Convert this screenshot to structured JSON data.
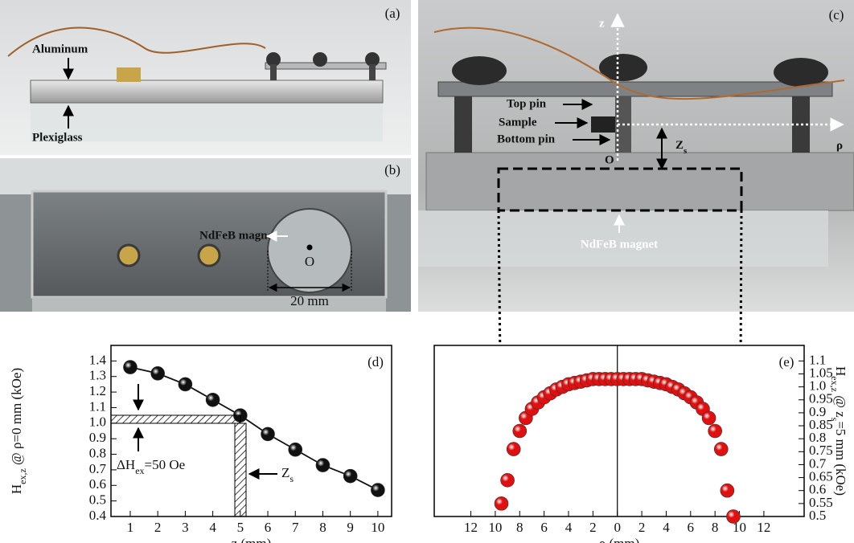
{
  "panels": [
    {
      "label": "(a)",
      "annotations": [
        "Aluminum",
        "Plexiglass"
      ]
    },
    {
      "label": "(b)",
      "annotations": [
        "NdFeB magnet",
        "O",
        "20 mm"
      ]
    },
    {
      "label": "(c)",
      "annotations": [
        "z",
        "ρ",
        "Top pin",
        "Sample",
        "Bottom pin",
        "O",
        "NdFeB magnet"
      ],
      "zs": [
        {
          "text": "Z"
        },
        {
          "sub": "s"
        }
      ]
    }
  ],
  "chart_data": [
    {
      "type": "line",
      "label": "(d)",
      "x_label": "z (mm)",
      "y_label": [
        {
          "text": "H"
        },
        {
          "sub": "ex,z"
        },
        {
          "text": " @ ρ=0 mm (kOe)"
        }
      ],
      "x": [
        1,
        2,
        3,
        4,
        5,
        6,
        7,
        8,
        9,
        10
      ],
      "values": [
        1.36,
        1.32,
        1.25,
        1.15,
        1.05,
        0.93,
        0.83,
        0.73,
        0.66,
        0.57
      ],
      "color": "#111111",
      "xlim": [
        0.3,
        10.5
      ],
      "xticks": [
        1,
        2,
        3,
        4,
        5,
        6,
        7,
        8,
        9,
        10
      ],
      "ylim": [
        0.4,
        1.5
      ],
      "yticks": [
        0.4,
        0.5,
        0.6,
        0.7,
        0.8,
        0.9,
        {
          "value": 1,
          "label": "1.0"
        },
        1.1,
        1.2,
        1.3,
        1.4
      ],
      "annotations": [
        [
          {
            "text": "ΔH"
          },
          {
            "sub": "ex"
          },
          {
            "text": "=50 Oe"
          }
        ],
        [
          {
            "text": "Z"
          },
          {
            "sub": "s"
          }
        ]
      ]
    },
    {
      "type": "scatter",
      "label": "(e)",
      "x_label": "ρ (mm)",
      "y_label": [
        {
          "text": "H"
        },
        {
          "sub": "ex,z"
        },
        {
          "text": " @ z"
        },
        {
          "sub": "s"
        },
        {
          "text": "=5 mm (kOe)"
        }
      ],
      "x": [
        -9.5,
        -9,
        -8.5,
        -8,
        -7.5,
        -7,
        -6.5,
        -6,
        -5.5,
        -5,
        -4.5,
        -4,
        -3.5,
        -3,
        -2.5,
        -2,
        -1.5,
        -1,
        -0.5,
        0,
        0.5,
        1,
        1.5,
        2,
        2.5,
        3,
        3.5,
        4,
        4.5,
        5,
        5.5,
        6,
        6.5,
        7,
        7.5,
        8,
        8.5,
        9,
        9.5
      ],
      "values": [
        0.55,
        0.64,
        0.76,
        0.83,
        0.88,
        0.915,
        0.94,
        0.96,
        0.975,
        0.99,
        1.0,
        1.01,
        1.015,
        1.02,
        1.025,
        1.03,
        1.03,
        1.03,
        1.03,
        1.03,
        1.03,
        1.03,
        1.03,
        1.03,
        1.025,
        1.02,
        1.015,
        1.01,
        1.0,
        0.99,
        0.975,
        0.96,
        0.94,
        0.915,
        0.88,
        0.83,
        0.76,
        0.6,
        0.5
      ],
      "color": "#e01010",
      "xlim": [
        -15,
        15.3
      ],
      "xticks": [
        {
          "value": -12,
          "label": "12"
        },
        {
          "value": -10,
          "label": "10"
        },
        {
          "value": -8,
          "label": "8"
        },
        {
          "value": -6,
          "label": "6"
        },
        {
          "value": -4,
          "label": "4"
        },
        {
          "value": -2,
          "label": "2"
        },
        0,
        2,
        4,
        6,
        8,
        10,
        12
      ],
      "ylim": [
        0.5,
        1.16
      ],
      "yticks": [
        0.5,
        0.55,
        0.6,
        0.65,
        0.7,
        0.75,
        0.8,
        0.85,
        0.9,
        0.95,
        {
          "value": 1,
          "label": "1.0"
        },
        1.05,
        1.1
      ],
      "zero_line": true
    }
  ]
}
